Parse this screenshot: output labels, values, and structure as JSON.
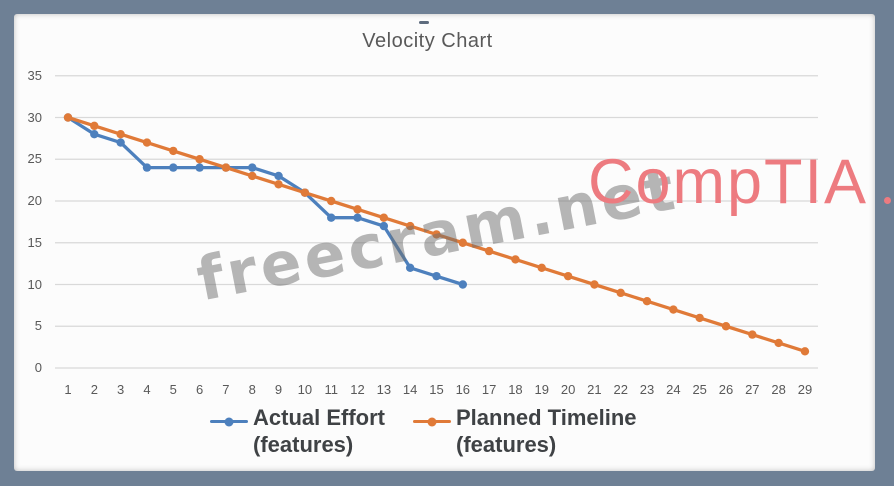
{
  "frame": {
    "color": "#6E8095",
    "canvas_color": "#FCFCFC"
  },
  "chart_data": {
    "type": "line",
    "title": "Velocity Chart",
    "categories": [
      1,
      2,
      3,
      4,
      5,
      6,
      7,
      8,
      9,
      10,
      11,
      12,
      13,
      14,
      15,
      16,
      17,
      18,
      19,
      20,
      21,
      22,
      23,
      24,
      25,
      26,
      27,
      28,
      29
    ],
    "ylim": [
      0,
      35
    ],
    "yticks": [
      0,
      5,
      10,
      15,
      20,
      25,
      30,
      35
    ],
    "grid": "horizontal",
    "gridline_color": "#D9D9D9",
    "axis_label_color": "#595959",
    "legend_position": "bottom",
    "series": [
      {
        "name": "Actual Effort (features)",
        "legend_lines": [
          "Actual Effort",
          "(features)"
        ],
        "color": "#4D80BD",
        "marker": "circle",
        "x": [
          1,
          2,
          3,
          4,
          5,
          6,
          7,
          8,
          9,
          10,
          11,
          12,
          13,
          14,
          15,
          16
        ],
        "values": [
          30,
          28,
          27,
          24,
          24,
          24,
          24,
          24,
          23,
          21,
          18,
          18,
          17,
          12,
          11,
          10
        ]
      },
      {
        "name": "Planned Timeline (features)",
        "legend_lines": [
          "Planned Timeline",
          "(features)"
        ],
        "color": "#E07A38",
        "marker": "circle",
        "x": [
          1,
          2,
          3,
          4,
          5,
          6,
          7,
          8,
          9,
          10,
          11,
          12,
          13,
          14,
          15,
          16,
          17,
          18,
          19,
          20,
          21,
          22,
          23,
          24,
          25,
          26,
          27,
          28,
          29
        ],
        "values": [
          30,
          29,
          28,
          27,
          26,
          25,
          24,
          23,
          22,
          21,
          20,
          19,
          18,
          17,
          16,
          15,
          14,
          13,
          12,
          11,
          10,
          9,
          8,
          7,
          6,
          5,
          4,
          3,
          2
        ]
      }
    ]
  },
  "watermarks": {
    "diagonal": {
      "text": "freecram.net"
    },
    "brand": {
      "text": "CompTIA",
      "color": "#ED7B80"
    }
  }
}
